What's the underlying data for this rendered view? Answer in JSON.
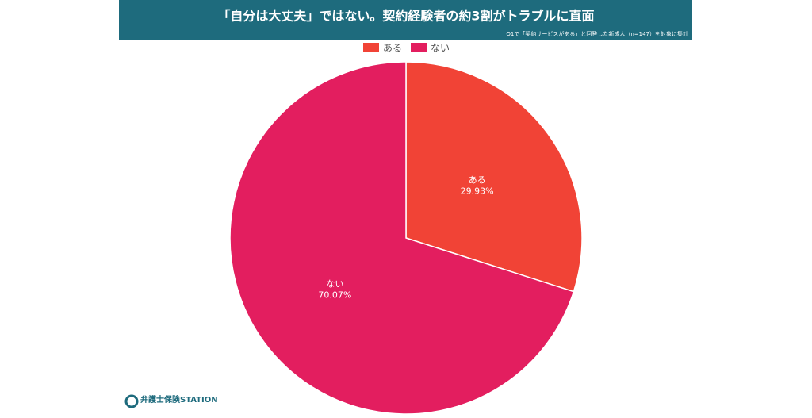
{
  "chart_data": {
    "type": "pie",
    "title": "「自分は大丈夫」ではない。契約経験者の約3割がトラブルに直面",
    "subtitle": "Q1で「契約サービスがある」と回答した新成人（n=147）を対象に集計",
    "categories": [
      "ある",
      "ない"
    ],
    "values": [
      29.93,
      70.07
    ],
    "value_labels": [
      "29.93%",
      "70.07%"
    ],
    "colors": [
      "#f14336",
      "#e31e5f"
    ],
    "legend": "top"
  },
  "logo": "弁護士保険STATION"
}
